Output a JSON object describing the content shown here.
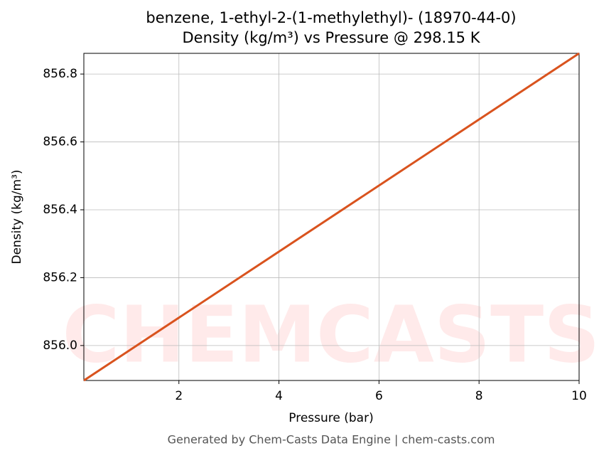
{
  "chart_data": {
    "type": "line",
    "title": "benzene, 1-ethyl-2-(1-methylethyl)- (18970-44-0)",
    "subtitle": "Density (kg/m³) vs Pressure @ 298.15 K",
    "x_label": "Pressure (bar)",
    "y_label": "Density (kg/m³)",
    "x": [
      0.1,
      10
    ],
    "series": [
      {
        "name": "Density",
        "color": "#d9531e",
        "values": [
          855.897,
          856.861
        ]
      }
    ],
    "xlim": [
      0.1,
      10
    ],
    "xticks": [
      2,
      4,
      6,
      8,
      10
    ],
    "ylim": [
      855.897,
      856.861
    ],
    "yticks": [
      {
        "value": 856,
        "label": "856.0"
      },
      856.2,
      856.4,
      856.6,
      856.8
    ],
    "grid": true,
    "watermark": "CHEMCASTS",
    "footer": "Generated by Chem-Casts Data Engine | chem-casts.com"
  }
}
